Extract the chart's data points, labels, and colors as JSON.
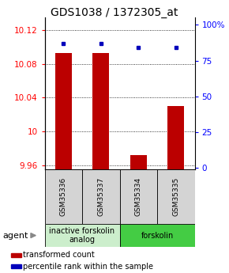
{
  "title": "GDS1038 / 1372305_at",
  "categories": [
    "GSM35336",
    "GSM35337",
    "GSM35334",
    "GSM35335"
  ],
  "bar_values": [
    10.093,
    10.093,
    9.972,
    10.03
  ],
  "bar_base": 9.955,
  "percentile_values": [
    87,
    87,
    84,
    84
  ],
  "ylim_left": [
    9.955,
    10.135
  ],
  "ylim_right": [
    -1,
    105
  ],
  "yticks_left": [
    9.96,
    10.0,
    10.04,
    10.08,
    10.12
  ],
  "yticks_right": [
    0,
    25,
    50,
    75,
    100
  ],
  "ytick_labels_left": [
    "9.96",
    "10",
    "10.04",
    "10.08",
    "10.12"
  ],
  "ytick_labels_right": [
    "0",
    "25",
    "50",
    "75",
    "100%"
  ],
  "bar_color": "#bb0000",
  "dot_color": "#0000bb",
  "agent_groups": [
    {
      "label": "inactive forskolin\nanalog",
      "span": [
        0,
        2
      ],
      "color": "#cceecc"
    },
    {
      "label": "forskolin",
      "span": [
        2,
        4
      ],
      "color": "#44cc44"
    }
  ],
  "legend_items": [
    {
      "color": "#bb0000",
      "label": "transformed count"
    },
    {
      "color": "#0000bb",
      "label": "percentile rank within the sample"
    }
  ],
  "agent_label": "agent",
  "bar_width": 0.45,
  "title_fontsize": 10,
  "tick_fontsize": 7.5,
  "sample_fontsize": 6.5,
  "legend_fontsize": 7,
  "agent_fontsize": 7
}
